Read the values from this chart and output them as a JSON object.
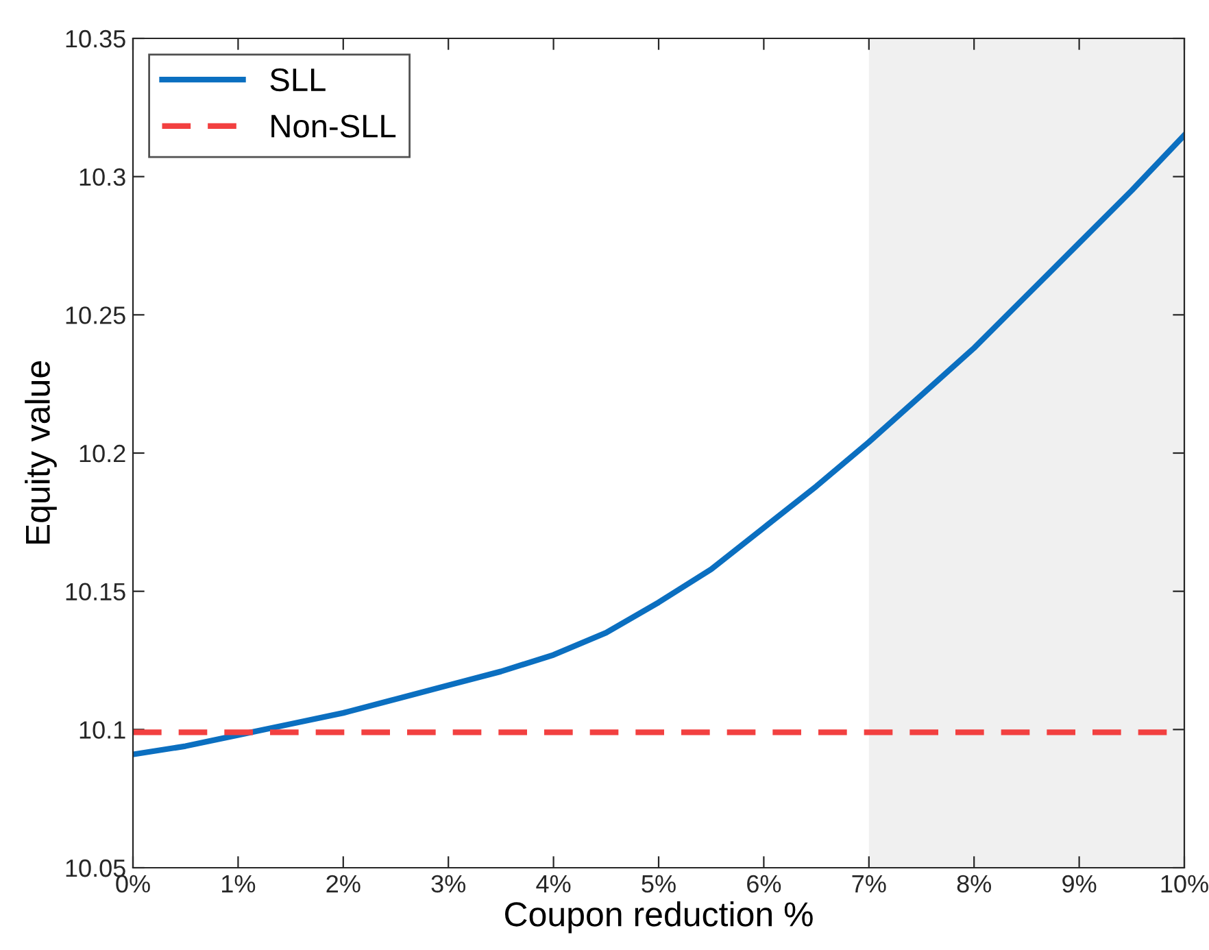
{
  "chart_data": {
    "type": "line",
    "xlabel": "Coupon reduction %",
    "ylabel": "Equity value",
    "x": [
      0,
      0.5,
      1,
      1.5,
      2,
      2.5,
      3,
      3.5,
      4,
      4.5,
      5,
      5.5,
      6,
      6.5,
      7,
      7.5,
      8,
      8.5,
      9,
      9.5,
      10
    ],
    "series": [
      {
        "name": "SLL",
        "color": "#0b6fc0",
        "line_style": "solid",
        "values": [
          10.091,
          10.094,
          10.098,
          10.102,
          10.106,
          10.111,
          10.116,
          10.121,
          10.127,
          10.135,
          10.146,
          10.158,
          10.173,
          10.188,
          10.204,
          10.221,
          10.238,
          10.257,
          10.276,
          10.295,
          10.315
        ]
      },
      {
        "name": "Non-SLL",
        "color": "#f24040",
        "line_style": "dashed",
        "values": [
          10.099,
          10.099,
          10.099,
          10.099,
          10.099,
          10.099,
          10.099,
          10.099,
          10.099,
          10.099,
          10.099,
          10.099,
          10.099,
          10.099,
          10.099,
          10.099,
          10.099,
          10.099,
          10.099,
          10.099,
          10.099
        ]
      }
    ],
    "bands": [
      {
        "axis": "x",
        "from": 7,
        "to": 10,
        "color": "#f0f0f0"
      }
    ],
    "xlim": [
      0,
      10
    ],
    "xticks": [
      {
        "value": 0,
        "label": "0%"
      },
      {
        "value": 1,
        "label": "1%"
      },
      {
        "value": 2,
        "label": "2%"
      },
      {
        "value": 3,
        "label": "3%"
      },
      {
        "value": 4,
        "label": "4%"
      },
      {
        "value": 5,
        "label": "5%"
      },
      {
        "value": 6,
        "label": "6%"
      },
      {
        "value": 7,
        "label": "7%"
      },
      {
        "value": 8,
        "label": "8%"
      },
      {
        "value": 9,
        "label": "9%"
      },
      {
        "value": 10,
        "label": "10%"
      }
    ],
    "ylim": [
      10.05,
      10.35
    ],
    "yticks": [
      10.05,
      10.1,
      10.15,
      10.2,
      10.25,
      10.3,
      10.35
    ],
    "grid": false,
    "legend": "top left",
    "marker": "none"
  }
}
